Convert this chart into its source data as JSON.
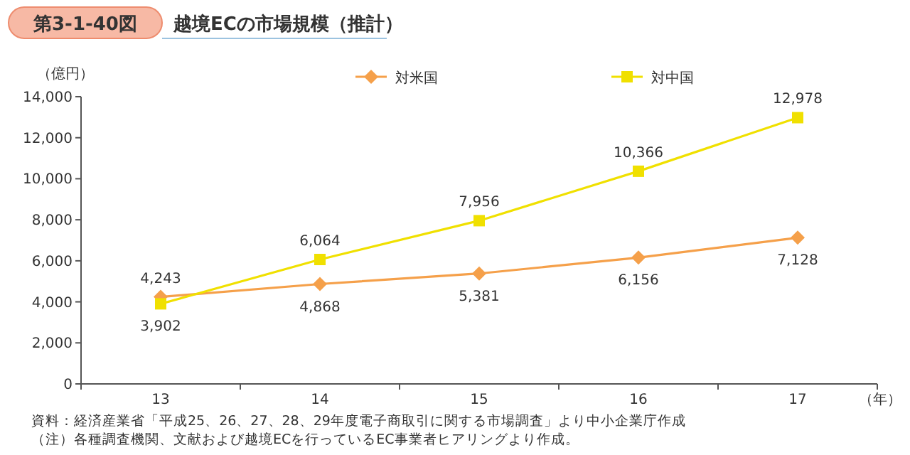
{
  "chart_data": {
    "type": "line",
    "title": "第3-1-40図",
    "subtitle": "越境ECの市場規模（推計）",
    "ylabel": "（億円）",
    "xlabel": "（年）",
    "categories": [
      "13",
      "14",
      "15",
      "16",
      "17"
    ],
    "series": [
      {
        "name": "対米国",
        "color": "#f5a04a",
        "marker": "diamond",
        "values": [
          4243,
          4868,
          5381,
          6156,
          7128
        ],
        "value_labels": [
          "4,243",
          "4,868",
          "5,381",
          "6,156",
          "7,128"
        ]
      },
      {
        "name": "対中国",
        "color": "#f0e000",
        "marker": "square",
        "values": [
          3902,
          6064,
          7956,
          10366,
          12978
        ],
        "value_labels": [
          "3,902",
          "6,064",
          "7,956",
          "10,366",
          "12,978"
        ]
      }
    ],
    "ylim": [
      0,
      14000
    ],
    "yticks": [
      0,
      {
        "value": 2000,
        "label": "2,000"
      },
      {
        "value": 4000,
        "label": "4,000"
      },
      {
        "value": 6000,
        "label": "6,000"
      },
      {
        "value": 8000,
        "label": "8,000"
      },
      {
        "value": 10000,
        "label": "10,000"
      },
      {
        "value": 12000,
        "label": "12,000"
      },
      {
        "value": 14000,
        "label": "14,000"
      }
    ],
    "legend": "top",
    "grid": false,
    "annotations": [
      "資料：経済産業省「平成25、26、27、28、29年度電子商取引に関する市場調査」より中小企業庁作成",
      "（注）各種調査機関、文献および越境ECを行っているEC事業者ヒアリングより作成。"
    ]
  }
}
